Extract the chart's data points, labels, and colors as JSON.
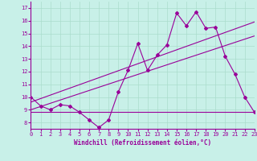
{
  "xlabel": "Windchill (Refroidissement éolien,°C)",
  "xlim": [
    0,
    23
  ],
  "ylim": [
    7.5,
    17.5
  ],
  "yticks": [
    8,
    9,
    10,
    11,
    12,
    13,
    14,
    15,
    16,
    17
  ],
  "xticks": [
    0,
    1,
    2,
    3,
    4,
    5,
    6,
    7,
    8,
    9,
    10,
    11,
    12,
    13,
    14,
    15,
    16,
    17,
    18,
    19,
    20,
    21,
    22,
    23
  ],
  "bg_color": "#c8f0e8",
  "line_color": "#990099",
  "grid_color": "#aaddcc",
  "line1_x": [
    0,
    1,
    2,
    3,
    4,
    5,
    6,
    7,
    8,
    9,
    10,
    11,
    12,
    13,
    14,
    15,
    16,
    17,
    18,
    19,
    20,
    21,
    22,
    23
  ],
  "line1_y": [
    10.0,
    9.3,
    9.0,
    9.4,
    9.3,
    8.8,
    8.2,
    7.6,
    8.2,
    10.4,
    12.1,
    14.2,
    12.1,
    13.3,
    14.1,
    16.6,
    15.6,
    16.7,
    15.4,
    15.5,
    13.2,
    11.8,
    10.0,
    8.8
  ],
  "line2_x": [
    0,
    23
  ],
  "line2_y": [
    8.8,
    8.8
  ],
  "line3_x": [
    0,
    23
  ],
  "line3_y": [
    9.0,
    14.8
  ],
  "line4_x": [
    0,
    23
  ],
  "line4_y": [
    9.6,
    15.9
  ]
}
